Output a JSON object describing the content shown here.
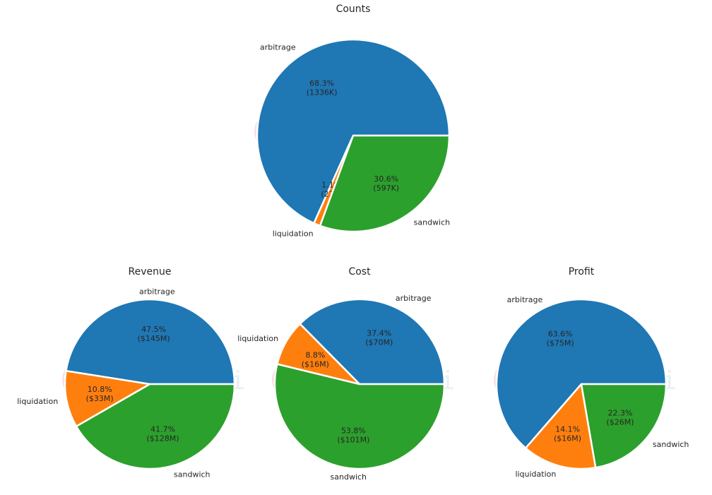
{
  "watermark": {
    "text": "EigenPhi",
    "colors": [
      "#e8867f",
      "#2e8b57",
      "#1f5fa8"
    ]
  },
  "colors": {
    "arbitrage": "#1f77b4",
    "liquidation": "#ff7f0e",
    "sandwich": "#2ca02c"
  },
  "chart_data": [
    {
      "type": "pie",
      "title": "Counts",
      "slices": [
        {
          "label": "arbitrage",
          "value": 68.3,
          "pct": "68.3%",
          "amount": "(1336K)"
        },
        {
          "label": "liquidation",
          "value": 1.1,
          "pct": "1.1%",
          "amount": "(22K)"
        },
        {
          "label": "sandwich",
          "value": 30.6,
          "pct": "30.6%",
          "amount": "(597K)"
        }
      ]
    },
    {
      "type": "pie",
      "title": "Revenue",
      "slices": [
        {
          "label": "arbitrage",
          "value": 47.5,
          "pct": "47.5%",
          "amount": "($145M)"
        },
        {
          "label": "liquidation",
          "value": 10.8,
          "pct": "10.8%",
          "amount": "($33M)"
        },
        {
          "label": "sandwich",
          "value": 41.7,
          "pct": "41.7%",
          "amount": "($128M)"
        }
      ]
    },
    {
      "type": "pie",
      "title": "Cost",
      "slices": [
        {
          "label": "arbitrage",
          "value": 37.4,
          "pct": "37.4%",
          "amount": "($70M)"
        },
        {
          "label": "liquidation",
          "value": 8.8,
          "pct": "8.8%",
          "amount": "($16M)"
        },
        {
          "label": "sandwich",
          "value": 53.8,
          "pct": "53.8%",
          "amount": "($101M)"
        }
      ]
    },
    {
      "type": "pie",
      "title": "Profit",
      "slices": [
        {
          "label": "arbitrage",
          "value": 63.6,
          "pct": "63.6%",
          "amount": "($75M)"
        },
        {
          "label": "liquidation",
          "value": 14.1,
          "pct": "14.1%",
          "amount": "($16M)"
        },
        {
          "label": "sandwich",
          "value": 22.3,
          "pct": "22.3%",
          "amount": "($26M)"
        }
      ]
    }
  ]
}
